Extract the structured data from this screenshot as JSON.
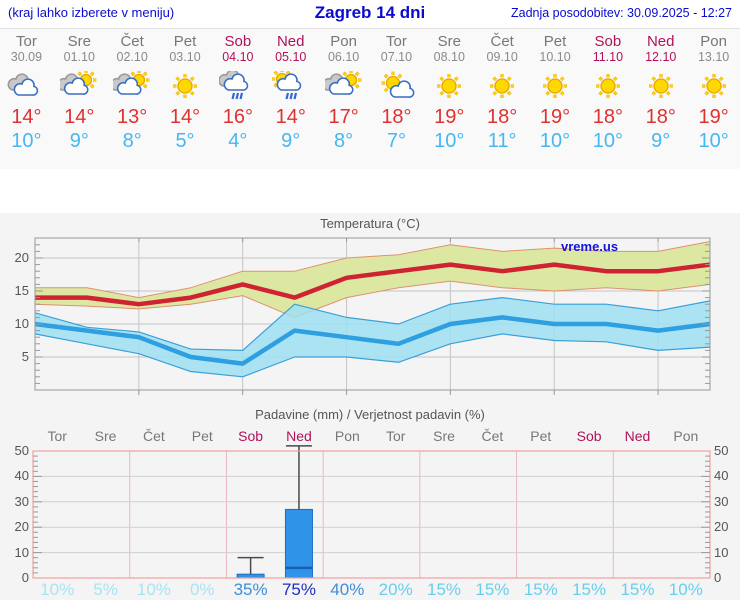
{
  "header": {
    "hint": "(kraj lahko izberete v meniju)",
    "title": "Zagreb 14 dni",
    "updated": "Zadnja posodobitev: 30.09.2025 - 12:27"
  },
  "watermark": "vreme.us",
  "colors": {
    "header_blue": "#0b0bd0",
    "weekday_gray": "#777777",
    "weekend_crimson": "#b0135a",
    "tmax_red": "#e03131",
    "tmin_blue": "#47b7f0",
    "temp_line_red": "#cf2233",
    "temp_band_yellow": "#dce8a2",
    "temp_band_edge": "#e09070",
    "min_line_blue": "#2e9fe0",
    "min_band_cyan": "#9fdff2",
    "min_band_edge": "#3aa0d8",
    "bar_blue": "#2f93e8",
    "bar_edge": "#1b6ec2",
    "whisker_gray": "#4a4a4a",
    "precip_frame_pink": "#f0a2a2",
    "pct_low": "#a9e3f3",
    "pct_mid": "#67cfee",
    "pct_high": "#3e8edb",
    "pct_max": "#2030b8"
  },
  "strip_days": [
    {
      "name": "Tor",
      "date": "30.09",
      "weekend": false,
      "icon": "cloudy",
      "tmax": "14°",
      "tmin": "10°"
    },
    {
      "name": "Sre",
      "date": "01.10",
      "weekend": false,
      "icon": "sun-cloud",
      "tmax": "14°",
      "tmin": "9°"
    },
    {
      "name": "Čet",
      "date": "02.10",
      "weekend": false,
      "icon": "sun-cloud",
      "tmax": "13°",
      "tmin": "8°"
    },
    {
      "name": "Pet",
      "date": "03.10",
      "weekend": false,
      "icon": "sunny",
      "tmax": "14°",
      "tmin": "5°"
    },
    {
      "name": "Sob",
      "date": "04.10",
      "weekend": true,
      "icon": "rain",
      "tmax": "16°",
      "tmin": "4°"
    },
    {
      "name": "Ned",
      "date": "05.10",
      "weekend": true,
      "icon": "sun-rain",
      "tmax": "14°",
      "tmin": "9°"
    },
    {
      "name": "Pon",
      "date": "06.10",
      "weekend": false,
      "icon": "sun-cloud",
      "tmax": "17°",
      "tmin": "8°"
    },
    {
      "name": "Tor",
      "date": "07.10",
      "weekend": false,
      "icon": "mostly-sunny",
      "tmax": "18°",
      "tmin": "7°"
    },
    {
      "name": "Sre",
      "date": "08.10",
      "weekend": false,
      "icon": "sunny",
      "tmax": "19°",
      "tmin": "10°"
    },
    {
      "name": "Čet",
      "date": "09.10",
      "weekend": false,
      "icon": "sunny",
      "tmax": "18°",
      "tmin": "11°"
    },
    {
      "name": "Pet",
      "date": "10.10",
      "weekend": false,
      "icon": "sunny",
      "tmax": "19°",
      "tmin": "10°"
    },
    {
      "name": "Sob",
      "date": "11.10",
      "weekend": true,
      "icon": "sunny",
      "tmax": "18°",
      "tmin": "10°"
    },
    {
      "name": "Ned",
      "date": "12.10",
      "weekend": true,
      "icon": "sunny",
      "tmax": "18°",
      "tmin": "9°"
    },
    {
      "name": "Pon",
      "date": "13.10",
      "weekend": false,
      "icon": "sunny",
      "tmax": "19°",
      "tmin": "10°"
    }
  ],
  "chart_data": [
    {
      "type": "area",
      "title": "Temperatura (°C)",
      "categories": [
        "30.09",
        "01.10",
        "02.10",
        "03.10",
        "04.10",
        "05.10",
        "06.10",
        "07.10",
        "08.10",
        "09.10",
        "10.10",
        "11.10",
        "12.10",
        "13.10"
      ],
      "ylim": [
        0,
        23
      ],
      "yticks": [
        5,
        10,
        15,
        20
      ],
      "grid": true,
      "vgrid_day_indices": [
        2,
        4,
        6,
        8,
        10,
        12
      ],
      "watermark": "vreme.us",
      "series": [
        {
          "name": "max_temp",
          "values": [
            14,
            14,
            13,
            14,
            16,
            14,
            17,
            18,
            19,
            18,
            19,
            18,
            18,
            19
          ]
        },
        {
          "name": "max_range_high",
          "values": [
            15.5,
            15.5,
            14,
            15.5,
            18,
            18,
            20,
            20.5,
            22,
            21,
            21.5,
            21,
            21,
            22.5
          ]
        },
        {
          "name": "max_range_low",
          "values": [
            13,
            12.7,
            12.3,
            13,
            14.3,
            11,
            14,
            15.5,
            16.5,
            15.5,
            15,
            15.5,
            15,
            16
          ]
        },
        {
          "name": "min_temp",
          "values": [
            10,
            9,
            8,
            5,
            4,
            9,
            8,
            7,
            10,
            11,
            10,
            10,
            9,
            10
          ]
        },
        {
          "name": "min_range_high",
          "values": [
            11.7,
            9.5,
            8.8,
            6.2,
            6,
            13,
            11,
            10,
            13,
            14,
            13,
            13,
            12,
            13.5
          ]
        },
        {
          "name": "min_range_low",
          "values": [
            8.5,
            7,
            5.5,
            2.8,
            2,
            5,
            5,
            4.2,
            7,
            8.5,
            7.5,
            7.3,
            6,
            6.5
          ]
        }
      ]
    },
    {
      "type": "bar",
      "title": "Padavine (mm) / Verjetnost padavin (%)",
      "categories": [
        "Tor",
        "Sre",
        "Čet",
        "Pet",
        "Sob",
        "Ned",
        "Pon",
        "Tor",
        "Sre",
        "Čet",
        "Pet",
        "Sob",
        "Ned",
        "Pon"
      ],
      "weekend_indices": [
        4,
        5,
        11,
        12
      ],
      "values": [
        0,
        0,
        0,
        0,
        1.5,
        27,
        0,
        0,
        0,
        0,
        0,
        0,
        0,
        0
      ],
      "whisker_high": [
        null,
        null,
        null,
        null,
        8,
        52,
        null,
        null,
        null,
        null,
        null,
        null,
        null,
        null
      ],
      "median": [
        null,
        null,
        null,
        null,
        null,
        4,
        null,
        null,
        null,
        null,
        null,
        null,
        null,
        null
      ],
      "ylim": [
        0,
        50
      ],
      "yticks": [
        0,
        10,
        20,
        30,
        40,
        50
      ],
      "grid": true,
      "probability": [
        {
          "label": "10%",
          "tier": "low"
        },
        {
          "label": "5%",
          "tier": "low"
        },
        {
          "label": "10%",
          "tier": "low"
        },
        {
          "label": "0%",
          "tier": "low"
        },
        {
          "label": "35%",
          "tier": "high"
        },
        {
          "label": "75%",
          "tier": "max"
        },
        {
          "label": "40%",
          "tier": "high"
        },
        {
          "label": "20%",
          "tier": "mid"
        },
        {
          "label": "15%",
          "tier": "mid"
        },
        {
          "label": "15%",
          "tier": "mid"
        },
        {
          "label": "15%",
          "tier": "mid"
        },
        {
          "label": "15%",
          "tier": "mid"
        },
        {
          "label": "15%",
          "tier": "mid"
        },
        {
          "label": "10%",
          "tier": "mid"
        }
      ]
    }
  ]
}
